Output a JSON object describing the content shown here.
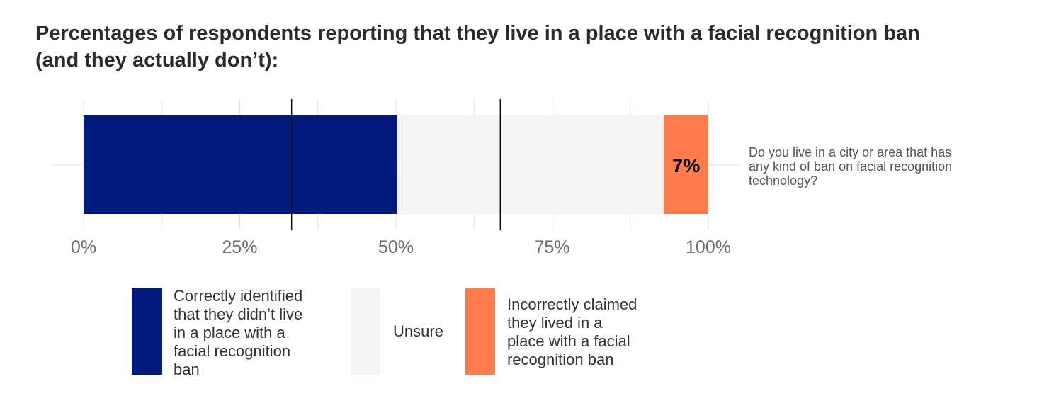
{
  "title_line1": "Percentages of respondents reporting that they live in a place with a facial recognition ban",
  "title_line2": "(and they actually don’t):",
  "chart_data": {
    "type": "bar",
    "orientation": "horizontal",
    "stacked": true,
    "categories": [
      "Do you live in a city or area that has any kind of ban on facial recognition technology?"
    ],
    "series": [
      {
        "name": "Correctly identified that they didn’t live in a place with a facial recognition ban",
        "values": [
          50.2
        ],
        "color": "#011a7c"
      },
      {
        "name": "Unsure",
        "values": [
          42.7
        ],
        "color": "#f5f5f5"
      },
      {
        "name": "Incorrectly claimed they lived in a place with a facial recognition ban",
        "values": [
          7.1
        ],
        "color": "#fe7b4c"
      }
    ],
    "data_labels": [
      {
        "series": "Incorrectly claimed they lived in a place with a facial recognition ban",
        "text": "7%"
      }
    ],
    "reference_lines": [
      33.3,
      66.7
    ],
    "xlim": [
      0,
      100
    ],
    "xticks": [
      0,
      25,
      50,
      75,
      100
    ],
    "xtick_labels": [
      "0%",
      "25%",
      "50%",
      "75%",
      "100%"
    ],
    "grid": true,
    "legend_position": "bottom"
  },
  "question_label": {
    "line1": "Do you live in a city or area that has",
    "line2": "any kind of ban on facial recognition",
    "line3": "technology?"
  },
  "legend": {
    "correct": {
      "line1": "Correctly identified",
      "line2": "that they didn’t live",
      "line3": "in a place with a",
      "line4": "facial recognition",
      "line5": "ban"
    },
    "unsure": {
      "line1": "Unsure"
    },
    "incorrect": {
      "line1": "Incorrectly claimed",
      "line2": "they lived in a",
      "line3": "place with a facial",
      "line4": "recognition ban"
    }
  }
}
